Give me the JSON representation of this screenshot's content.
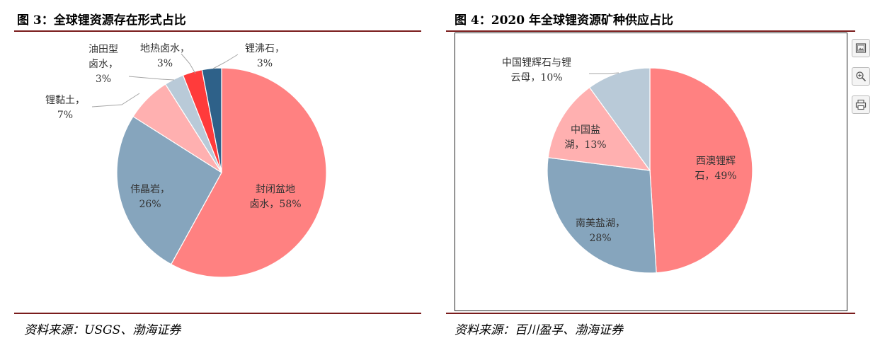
{
  "left": {
    "title": "图 3：全球锂资源存在形式占比",
    "source": "资料来源：USGS、渤海证券"
  },
  "right": {
    "title": "图 4：2020 年全球锂资源矿种供应占比",
    "source": "资料来源：百川盈孚、渤海证券"
  },
  "toolbar": {
    "icons": [
      "image-icon",
      "zoom-in-icon",
      "print-icon"
    ]
  },
  "chart_data": [
    {
      "type": "pie",
      "title": "全球锂资源存在形式占比",
      "start": "top (12 o'clock), clockwise",
      "slices": [
        {
          "label": [
            "封闭盆地",
            "卤水，58%"
          ],
          "value": 58,
          "color": "#ff8181"
        },
        {
          "label": [
            "伟晶岩，",
            "26%"
          ],
          "value": 26,
          "color": "#86a5bd"
        },
        {
          "label": [
            "锂黏土，",
            "7%"
          ],
          "value": 7,
          "color": "#ffb0b0"
        },
        {
          "label": [
            "油田型",
            "卤水，",
            "3%"
          ],
          "value": 3,
          "color": "#b9cad8"
        },
        {
          "label": [
            "地热卤水，",
            "3%"
          ],
          "value": 3,
          "color": "#ff3b3b"
        },
        {
          "label": [
            "锂沸石，",
            "3%"
          ],
          "value": 3,
          "color": "#2e6189"
        }
      ]
    },
    {
      "type": "pie",
      "title": "2020 年全球锂资源矿种供应占比",
      "start": "top (12 o'clock), clockwise",
      "slices": [
        {
          "label": [
            "西澳锂辉",
            "石，49%"
          ],
          "value": 49,
          "color": "#ff8181"
        },
        {
          "label": [
            "南美盐湖，",
            "28%"
          ],
          "value": 28,
          "color": "#86a5bd"
        },
        {
          "label": [
            "中国盐",
            "湖，13%"
          ],
          "value": 13,
          "color": "#ffb0b0"
        },
        {
          "label": [
            "中国锂辉石与锂",
            "云母，10%"
          ],
          "value": 10,
          "color": "#b9cad8"
        }
      ]
    }
  ]
}
